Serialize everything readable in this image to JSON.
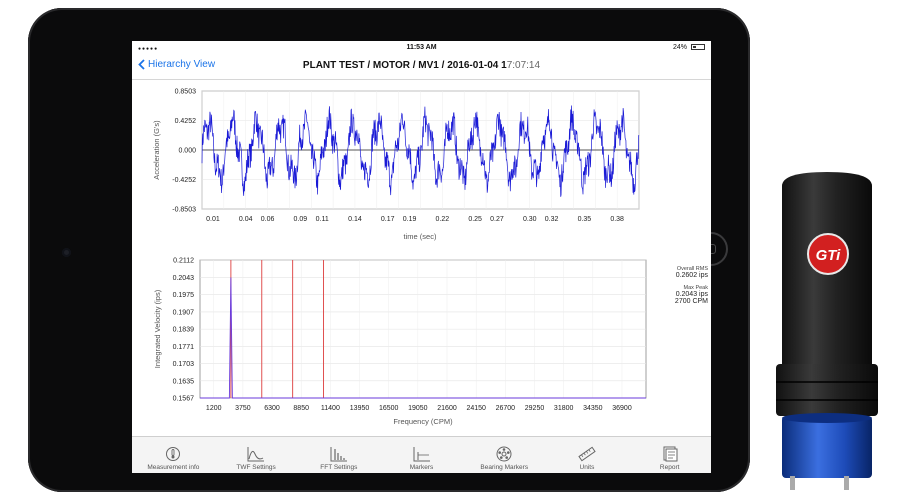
{
  "status_bar": {
    "time": "11:53 AM",
    "battery": "24%"
  },
  "nav": {
    "back_label": "Hierarchy View",
    "title": "PLANT TEST / MOTOR / MV1 / 2016-01-04 1",
    "title_faded": "7:07:14"
  },
  "colors": {
    "accent": "#1a73e8",
    "waveform": "#1a1ad6",
    "marker": "#e05050"
  },
  "twf_chart": {
    "type": "line",
    "ylabel": "Acceleration (G's)",
    "xlabel": "time (sec)",
    "y_ticks": [
      "0.8503",
      "0.4252",
      "0.000",
      "-0.4252",
      "-0.8503"
    ],
    "x_ticks": [
      "0.01",
      "0.04",
      "0.06",
      "0.09",
      "0.11",
      "0.14",
      "0.17",
      "0.19",
      "0.22",
      "0.25",
      "0.27",
      "0.30",
      "0.32",
      "0.35",
      "0.38"
    ],
    "ylim": [
      -0.8503,
      0.8503
    ],
    "xlim": [
      0,
      0.4
    ],
    "dominant_frequency_hz": 45,
    "amplitude_g": 0.5
  },
  "fft_chart": {
    "type": "line",
    "ylabel": "Integrated Velocity (ips)",
    "xlabel": "Frequency (CPM)",
    "y_ticks": [
      "0.2112",
      "0.2043",
      "0.1975",
      "0.1907",
      "0.1839",
      "0.1771",
      "0.1703",
      "0.1635",
      "0.1567"
    ],
    "x_ticks": [
      "1200",
      "3750",
      "6300",
      "8850",
      "11400",
      "13950",
      "16500",
      "19050",
      "21600",
      "24150",
      "26700",
      "29250",
      "31800",
      "34350",
      "36900"
    ],
    "ylim": [
      0.1567,
      0.2112
    ],
    "xlim": [
      0,
      39000
    ],
    "peak": {
      "x": 2700,
      "y": 0.2043
    },
    "markers_cpm": [
      2700,
      5400,
      8100,
      10800
    ]
  },
  "fft_stats": {
    "overall_rms_label": "Overall RMS",
    "overall_rms_value": "0.2602 ips",
    "max_peak_label": "Max Peak",
    "max_peak_value": "0.2043 ips",
    "max_peak_freq": "2700 CPM"
  },
  "tabs": [
    {
      "label": "Measurement info",
      "icon": "thermometer-icon"
    },
    {
      "label": "TWF Settings",
      "icon": "waveform-icon"
    },
    {
      "label": "FFT Settings",
      "icon": "spectrum-bars-icon"
    },
    {
      "label": "Markers",
      "icon": "markers-icon"
    },
    {
      "label": "Bearing Markers",
      "icon": "bearing-icon"
    },
    {
      "label": "Units",
      "icon": "ruler-icon"
    },
    {
      "label": "Report",
      "icon": "report-icon"
    }
  ],
  "sensor": {
    "logo_text": "GTi"
  }
}
